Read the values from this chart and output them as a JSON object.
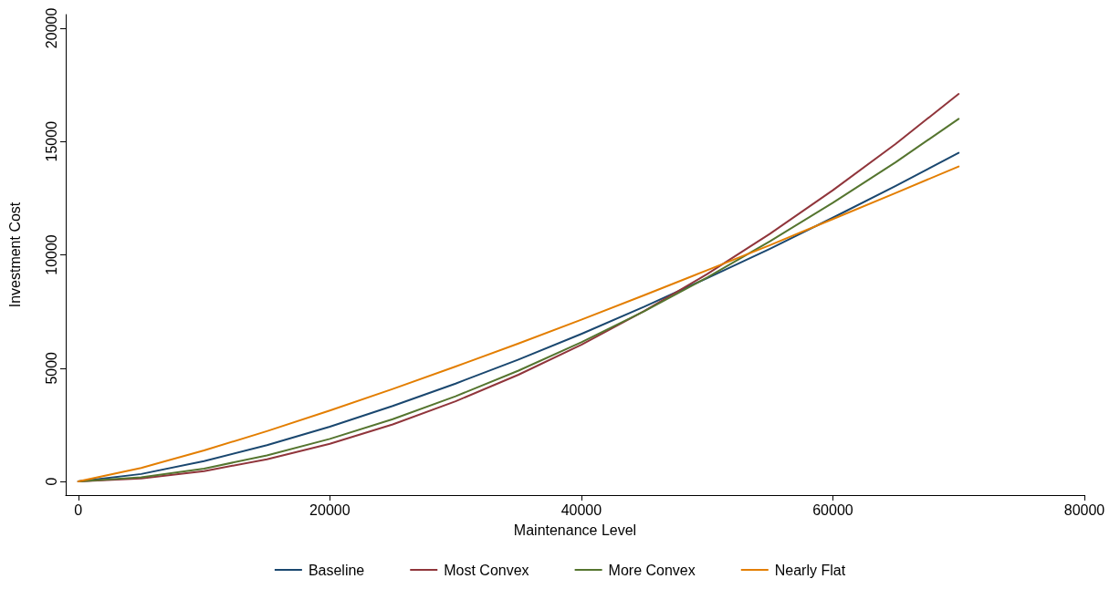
{
  "chart_data": {
    "type": "line",
    "xlabel": "Maintenance Level",
    "ylabel": "Investment Cost",
    "x": [
      0,
      5000,
      10000,
      15000,
      20000,
      25000,
      30000,
      35000,
      40000,
      45000,
      50000,
      55000,
      60000,
      65000,
      70000
    ],
    "series": [
      {
        "name": "Baseline",
        "color": "#1a476f",
        "values": [
          0,
          330,
          900,
          1600,
          2420,
          3330,
          4320,
          5380,
          6510,
          7710,
          8970,
          10270,
          11640,
          13040,
          14500
        ]
      },
      {
        "name": "Most Convex",
        "color": "#90353b",
        "values": [
          0,
          130,
          460,
          980,
          1660,
          2520,
          3540,
          4710,
          6030,
          7520,
          9150,
          10930,
          12850,
          14900,
          17100
        ]
      },
      {
        "name": "More Convex",
        "color": "#55752f",
        "values": [
          0,
          180,
          570,
          1150,
          1880,
          2750,
          3760,
          4890,
          6140,
          7510,
          9000,
          10600,
          12300,
          14090,
          16000
        ]
      },
      {
        "name": "Nearly Flat",
        "color": "#e37e00",
        "values": [
          0,
          600,
          1370,
          2220,
          3130,
          4080,
          5070,
          6090,
          7140,
          8220,
          9320,
          10430,
          11580,
          12730,
          13900
        ]
      }
    ],
    "xlim": [
      -1000,
      80000
    ],
    "xticks": [
      0,
      20000,
      40000,
      60000,
      80000
    ],
    "ylim": [
      -600,
      20600
    ],
    "yticks": [
      0,
      5000,
      10000,
      15000,
      20000
    ],
    "grid": false,
    "legend": "bottom",
    "marker": "none",
    "line_style": "solid"
  }
}
